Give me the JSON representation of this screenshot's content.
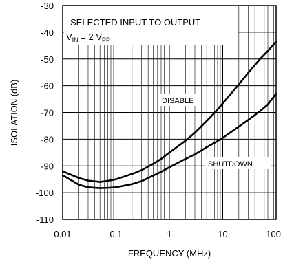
{
  "chart_data": {
    "type": "line",
    "title": "SELECTED INPUT TO OUTPUT",
    "subtitle": {
      "main": "V",
      "sub1": "IN",
      "mid": " = 2 V",
      "sub2": "PP"
    },
    "xlabel": "FREQUENCY (MHz)",
    "ylabel": "ISOLATION (dB)",
    "x_scale": "log",
    "xlim": [
      0.01,
      100
    ],
    "ylim": [
      -110,
      -30
    ],
    "grid": true,
    "x_ticks": [
      0.01,
      0.1,
      1,
      10,
      100
    ],
    "x_tick_labels": [
      "0.01",
      "0.1",
      "1",
      "10",
      "100"
    ],
    "y_ticks": [
      -30,
      -40,
      -50,
      -60,
      -70,
      -80,
      -90,
      -100,
      -110
    ],
    "y_tick_labels": [
      "-30",
      "-40",
      "-50",
      "-60",
      "-70",
      "-80",
      "-90",
      "-100",
      "-110"
    ],
    "series": [
      {
        "name": "DISABLE",
        "x": [
          0.01,
          0.02,
          0.03,
          0.05,
          0.07,
          0.1,
          0.2,
          0.3,
          0.5,
          0.7,
          1,
          2,
          3,
          5,
          7,
          10,
          20,
          30,
          50,
          70,
          100
        ],
        "y": [
          -92,
          -94.5,
          -95.5,
          -96,
          -95.6,
          -95,
          -93,
          -91.6,
          -89.2,
          -87.4,
          -85,
          -80.6,
          -77.6,
          -73.2,
          -70.2,
          -66.6,
          -59.5,
          -55.2,
          -50,
          -47,
          -43.5
        ]
      },
      {
        "name": "SHUTDOWN",
        "x": [
          0.01,
          0.02,
          0.03,
          0.05,
          0.07,
          0.1,
          0.2,
          0.3,
          0.5,
          0.7,
          1,
          2,
          3,
          5,
          7,
          10,
          20,
          30,
          50,
          70,
          100
        ],
        "y": [
          -93.5,
          -97,
          -98,
          -98.3,
          -98.2,
          -98,
          -96.8,
          -95.7,
          -93.6,
          -92.2,
          -90.5,
          -87.4,
          -85.7,
          -83,
          -81.4,
          -79.5,
          -75.3,
          -72.8,
          -69.5,
          -67,
          -63
        ]
      }
    ]
  }
}
